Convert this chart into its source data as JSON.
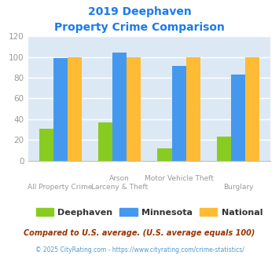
{
  "title_line1": "2019 Deephaven",
  "title_line2": "Property Crime Comparison",
  "title_color": "#1a7aee",
  "cat_labels_line1": [
    "All Property Crime",
    "Arson",
    "Motor Vehicle Theft",
    "Burglary"
  ],
  "cat_labels_line2": [
    "",
    "Larceny & Theft",
    "",
    ""
  ],
  "deephaven": [
    31,
    37,
    12,
    23
  ],
  "minnesota": [
    99,
    104,
    91,
    83
  ],
  "national": [
    100,
    100,
    100,
    100
  ],
  "bar_colors": [
    "#88cc22",
    "#4499ee",
    "#ffbb33"
  ],
  "legend_labels": [
    "Deephaven",
    "Minnesota",
    "National"
  ],
  "ylim": [
    0,
    120
  ],
  "yticks": [
    0,
    20,
    40,
    60,
    80,
    100,
    120
  ],
  "fig_bg": "#ffffff",
  "plot_bg": "#dce9f5",
  "footnote1": "Compared to U.S. average. (U.S. average equals 100)",
  "footnote2": "© 2025 CityRating.com - https://www.cityrating.com/crime-statistics/",
  "footnote1_color": "#993300",
  "footnote2_color": "#5599cc",
  "grid_color": "#ffffff",
  "tick_color": "#999999",
  "xlabel_color": "#999999"
}
